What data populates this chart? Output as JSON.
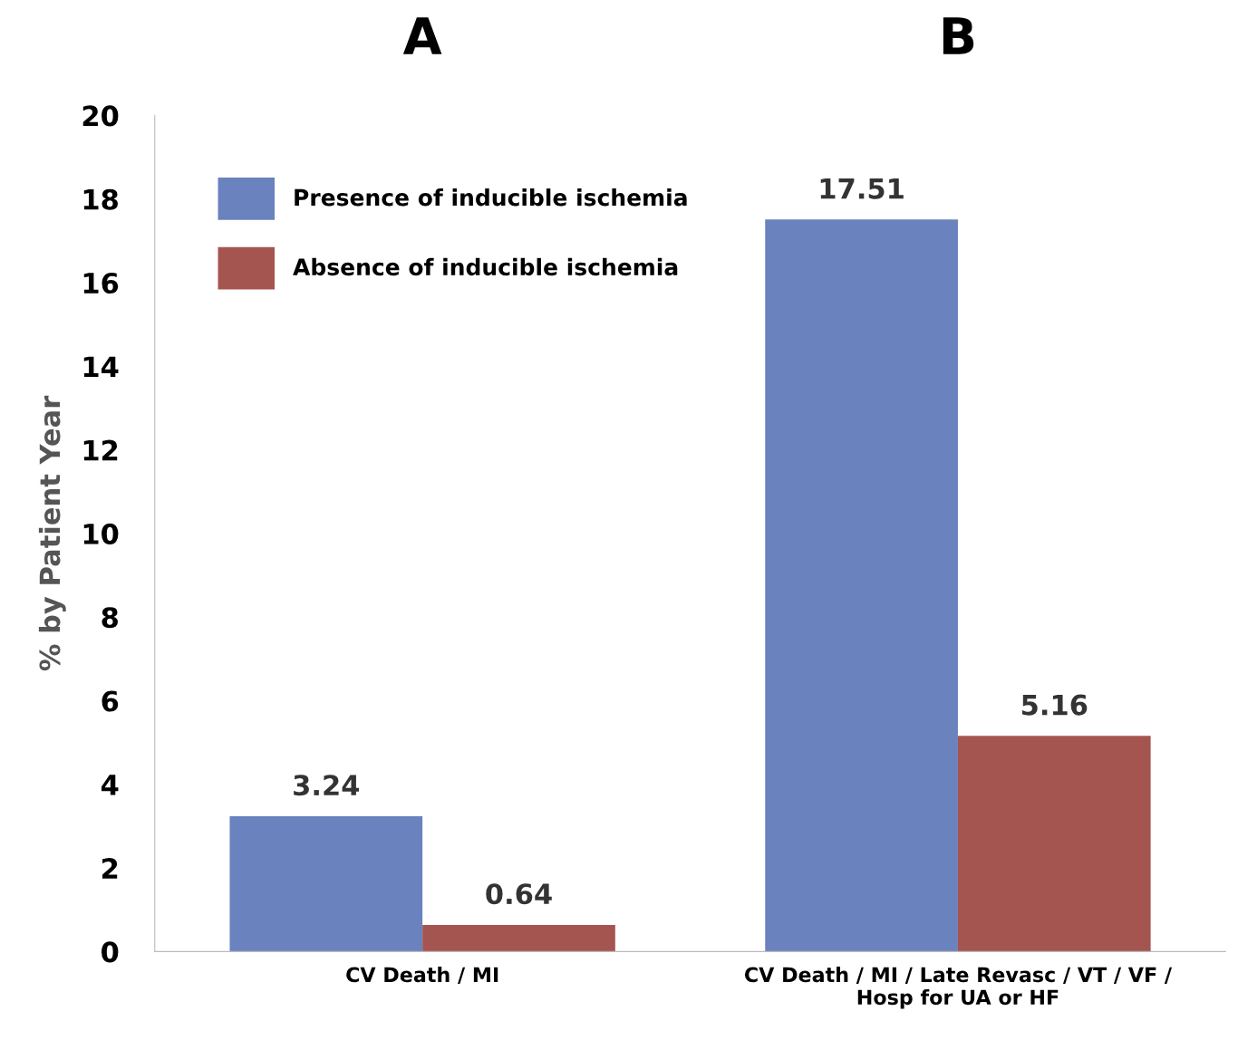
{
  "chart_data": {
    "type": "bar",
    "ylabel": "% by Patient Year",
    "categories": [
      "CV Death / MI",
      "CV Death / MI / Late Revasc / VT / VF /\nHosp for UA or HF"
    ],
    "series": [
      {
        "name": "Presence of inducible ischemia",
        "color": "#6a82bd",
        "values": [
          3.24,
          17.51
        ]
      },
      {
        "name": "Absence of inducible ischemia",
        "color": "#a5554f",
        "values": [
          0.64,
          5.16
        ]
      }
    ],
    "annotations": [
      "A",
      "B"
    ],
    "ylim": [
      0,
      20
    ],
    "yticks": [
      0,
      2,
      4,
      6,
      8,
      10,
      12,
      14,
      16,
      18,
      20
    ],
    "data_labels": true,
    "grid": false,
    "legend": "top left"
  }
}
